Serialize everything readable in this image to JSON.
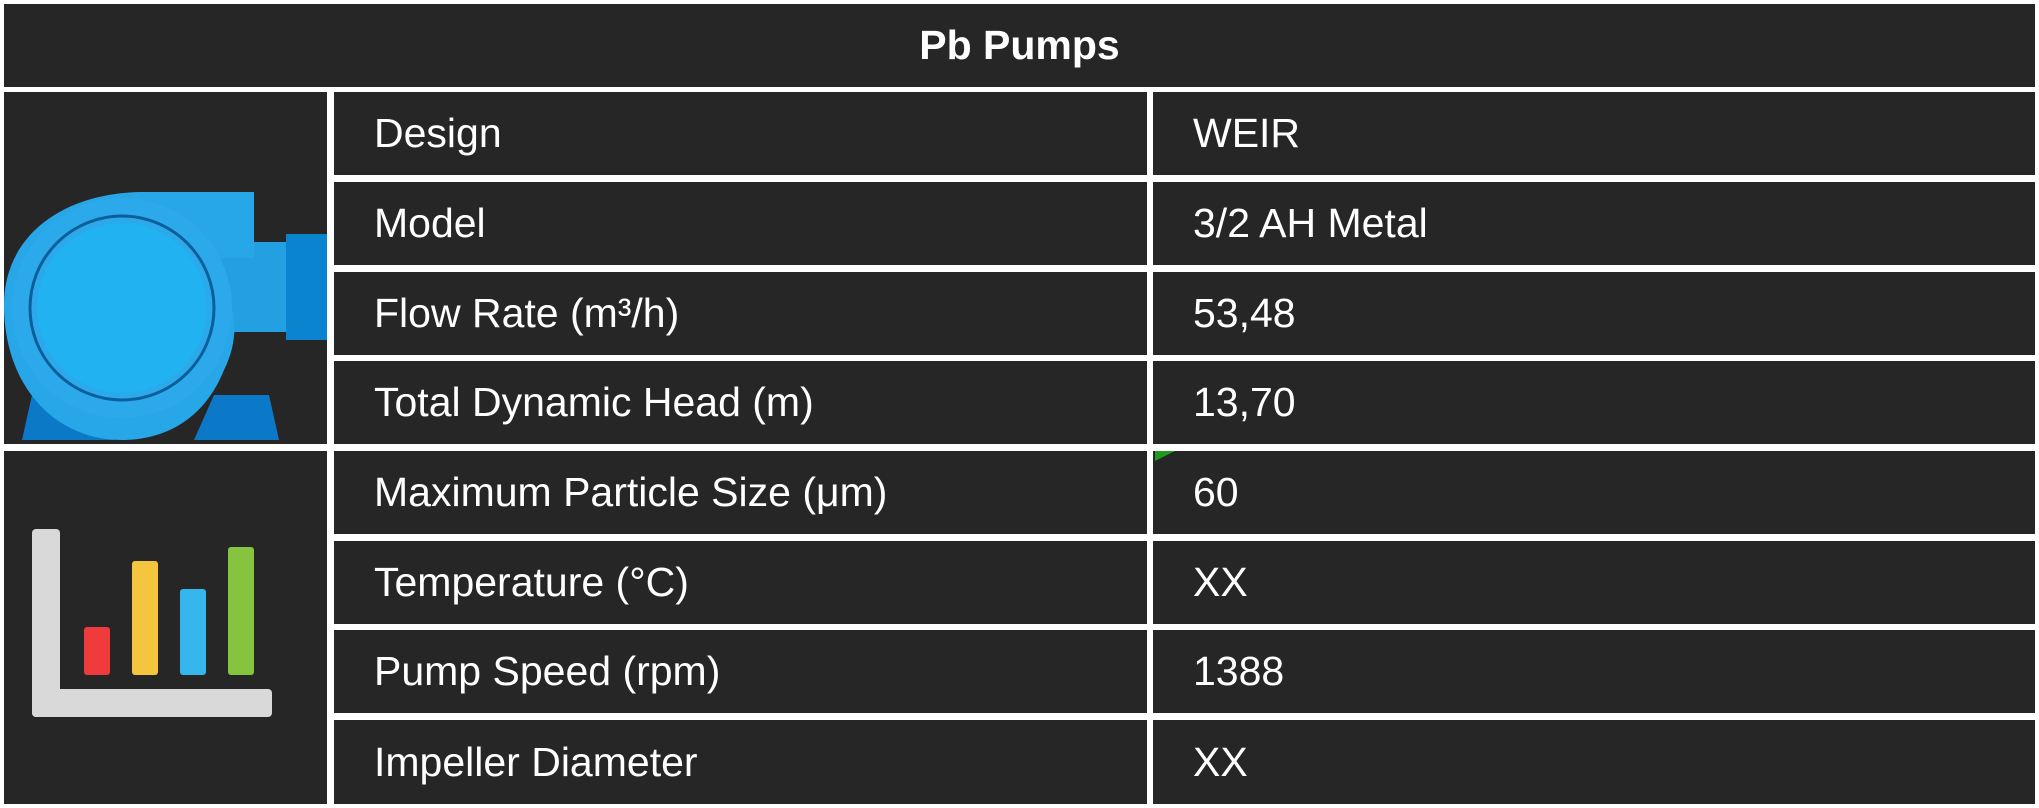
{
  "title": "Pb Pumps",
  "icons": {
    "top": "pump-icon",
    "bottom": "bar-chart-icon"
  },
  "colors": {
    "background": "#262626",
    "text": "#ffffff",
    "divider": "#ffffff",
    "pump_blue": "#27a6e8",
    "pump_dark_blue": "#0b79c8",
    "bar_red": "#ef3b3b",
    "bar_yellow": "#f4c63d",
    "bar_blue": "#35b7ee",
    "bar_green": "#86c440",
    "axis_gray": "#d9d9d9"
  },
  "rows": [
    {
      "label": "Design",
      "value": "WEIR"
    },
    {
      "label": "Model",
      "value": "3/2 AH Metal"
    },
    {
      "label": "Flow Rate (m³/h)",
      "value": "53,48"
    },
    {
      "label": "Total Dynamic Head (m)",
      "value": "13,70"
    },
    {
      "label": "Maximum Particle Size (μm)",
      "value": "60"
    },
    {
      "label": "Temperature (°C)",
      "value": "XX"
    },
    {
      "label": "Pump Speed (rpm)",
      "value": "1388"
    },
    {
      "label": "Impeller Diameter",
      "value": "XX"
    }
  ]
}
